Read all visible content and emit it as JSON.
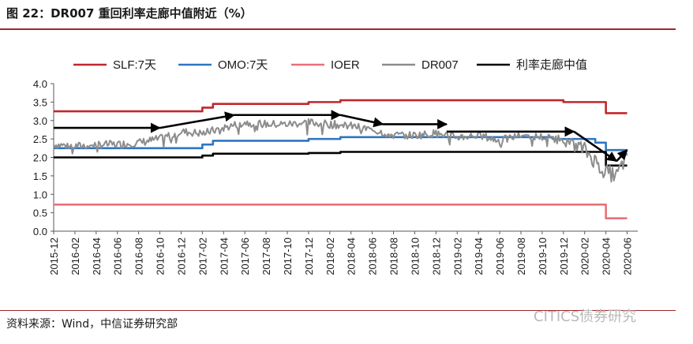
{
  "figure": {
    "title": "图 22：DR007 重回利率走廊中值附近（%）",
    "source": "资料来源：Wind，中信证券研究部",
    "watermark": "CITICS债券研究"
  },
  "chart_data": {
    "type": "line",
    "title": "",
    "xlabel": "",
    "ylabel": "",
    "ylim": [
      0,
      4
    ],
    "yticks": [
      "0.0",
      "0.5",
      "1.0",
      "1.5",
      "2.0",
      "2.5",
      "3.0",
      "3.5",
      "4.0"
    ],
    "xticks": [
      "2015-12",
      "2016-02",
      "2016-04",
      "2016-06",
      "2016-08",
      "2016-10",
      "2016-12",
      "2017-02",
      "2017-04",
      "2017-06",
      "2017-08",
      "2017-10",
      "2017-12",
      "2018-02",
      "2018-04",
      "2018-06",
      "2018-08",
      "2018-10",
      "2018-12",
      "2019-02",
      "2019-04",
      "2019-06",
      "2019-08",
      "2019-10",
      "2019-12",
      "2020-02",
      "2020-04",
      "2020-06"
    ],
    "legend_position": "top",
    "grid": false,
    "series": [
      {
        "name": "SLF:7天",
        "color": "#c0272d",
        "step": true,
        "points": [
          [
            "2015-12",
            3.25
          ],
          [
            "2017-02",
            3.35
          ],
          [
            "2017-03",
            3.45
          ],
          [
            "2017-12",
            3.5
          ],
          [
            "2018-03",
            3.55
          ],
          [
            "2019-12",
            3.5
          ],
          [
            "2020-04",
            3.2
          ],
          [
            "2020-06",
            3.2
          ]
        ]
      },
      {
        "name": "OMO:7天",
        "color": "#2e75c0",
        "step": true,
        "points": [
          [
            "2015-12",
            2.25
          ],
          [
            "2017-02",
            2.35
          ],
          [
            "2017-03",
            2.45
          ],
          [
            "2017-12",
            2.5
          ],
          [
            "2018-03",
            2.55
          ],
          [
            "2019-11",
            2.5
          ],
          [
            "2020-03",
            2.4
          ],
          [
            "2020-04",
            2.2
          ],
          [
            "2020-06",
            2.2
          ]
        ]
      },
      {
        "name": "IOER",
        "color": "#e8707a",
        "step": true,
        "points": [
          [
            "2015-12",
            0.72
          ],
          [
            "2020-04",
            0.35
          ],
          [
            "2020-06",
            0.35
          ]
        ]
      },
      {
        "name": "DR007",
        "color": "#8c8c8c",
        "step": false,
        "points": [
          [
            "2015-12",
            2.35
          ],
          [
            "2016-02",
            2.3
          ],
          [
            "2016-04",
            2.35
          ],
          [
            "2016-06",
            2.35
          ],
          [
            "2016-08",
            2.4
          ],
          [
            "2016-10",
            2.5
          ],
          [
            "2016-12",
            2.7
          ],
          [
            "2017-02",
            2.65
          ],
          [
            "2017-04",
            2.8
          ],
          [
            "2017-06",
            2.95
          ],
          [
            "2017-08",
            2.9
          ],
          [
            "2017-10",
            2.9
          ],
          [
            "2017-12",
            2.95
          ],
          [
            "2018-02",
            2.9
          ],
          [
            "2018-04",
            2.85
          ],
          [
            "2018-06",
            2.75
          ],
          [
            "2018-08",
            2.6
          ],
          [
            "2018-10",
            2.6
          ],
          [
            "2018-12",
            2.65
          ],
          [
            "2019-02",
            2.55
          ],
          [
            "2019-04",
            2.6
          ],
          [
            "2019-06",
            2.45
          ],
          [
            "2019-08",
            2.6
          ],
          [
            "2019-10",
            2.55
          ],
          [
            "2019-12",
            2.5
          ],
          [
            "2020-02",
            2.2
          ],
          [
            "2020-04",
            1.6
          ],
          [
            "2020-05",
            1.5
          ],
          [
            "2020-06",
            2.05
          ]
        ]
      },
      {
        "name": "利率走廊中值",
        "color": "#000000",
        "step": true,
        "points": [
          [
            "2015-12",
            2.0
          ],
          [
            "2017-02",
            2.05
          ],
          [
            "2017-03",
            2.1
          ],
          [
            "2017-12",
            2.12
          ],
          [
            "2018-03",
            2.15
          ],
          [
            "2019-12",
            2.15
          ],
          [
            "2020-04",
            1.78
          ],
          [
            "2020-06",
            1.78
          ]
        ]
      }
    ],
    "annotations": [
      {
        "type": "arrow",
        "label": "",
        "from": [
          "2015-12",
          2.8
        ],
        "to": [
          "2016-10",
          2.8
        ]
      },
      {
        "type": "arrow",
        "label": "",
        "from": [
          "2016-10",
          2.8
        ],
        "to": [
          "2017-05",
          3.15
        ]
      },
      {
        "type": "arrow",
        "label": "",
        "from": [
          "2017-05",
          3.15
        ],
        "to": [
          "2018-03",
          3.15
        ]
      },
      {
        "type": "arrow",
        "label": "",
        "from": [
          "2018-03",
          3.15
        ],
        "to": [
          "2018-07",
          2.9
        ]
      },
      {
        "type": "arrow",
        "label": "",
        "from": [
          "2018-07",
          2.9
        ],
        "to": [
          "2019-01",
          2.9
        ]
      },
      {
        "type": "arrow",
        "label": "",
        "from": [
          "2019-01",
          2.7
        ],
        "to": [
          "2020-01",
          2.7
        ]
      },
      {
        "type": "arrow",
        "label": "",
        "from": [
          "2020-01",
          2.7
        ],
        "to": [
          "2020-05",
          1.9
        ]
      },
      {
        "type": "arrow",
        "label": "",
        "from": [
          "2020-05",
          1.9
        ],
        "to": [
          "2020-06",
          2.2
        ]
      }
    ]
  }
}
